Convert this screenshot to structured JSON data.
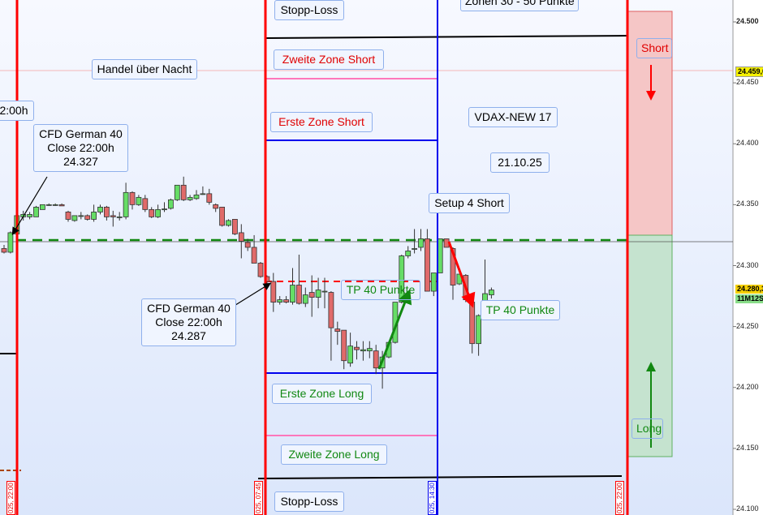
{
  "instrument_labels": {
    "top_cut": "Zonen 30 - 50 Punkte",
    "stopp_loss_top": "Stopp-Loss",
    "stopp_loss_bottom": "Stopp-Loss",
    "handel_ueber_nacht": "Handel über Nacht",
    "zweite_zone_short": "Zweite Zone Short",
    "erste_zone_short": "Erste Zone Short",
    "erste_zone_long": "Erste Zone Long",
    "zweite_zone_long": "Zweite Zone Long",
    "left_cut": "2:00h",
    "close1": {
      "line1": "CFD German 40",
      "line2": "Close 22:00h",
      "line3": "24.327"
    },
    "close2": {
      "line1": "CFD German 40",
      "line2": "Close 22:00h",
      "line3": "24.287"
    },
    "vdax": "VDAX-NEW 17",
    "date": "21.10.25",
    "setup": "Setup 4 Short",
    "tp1": "TP 40 Punkte",
    "tp2": "TP 40 Punkte",
    "short": "Short",
    "long": "Long"
  },
  "time_tags": [
    "025, 22:00",
    "025, 07:45",
    "025, 14:30",
    "025, 22:00"
  ],
  "price_axis": {
    "ticks": [
      "24.500",
      "24.450",
      "24.400",
      "24.350",
      "24.300",
      "24.250",
      "24.200",
      "24.150",
      "24.100"
    ],
    "tick_values": [
      24500,
      24450,
      24400,
      24350,
      24300,
      24250,
      24200,
      24150,
      24100
    ],
    "marker_price": "24.459,0",
    "last_price": "24.280,3",
    "countdown": "11M12S"
  },
  "colors": {
    "up": "#66dd66",
    "down": "#e06a6a",
    "zone_red": "#ff0000",
    "zone_blue": "#0000ee",
    "dashed_green": "#118811"
  },
  "chart_data": {
    "type": "candlestick",
    "ylim": [
      24100,
      24500
    ],
    "levels": {
      "green_dashed": 24320,
      "red_dashed": 24286,
      "marker": 24459
    },
    "candles_ohlc": [
      [
        24314,
        24317,
        24310,
        24311
      ],
      [
        24311,
        24328,
        24310,
        24327
      ],
      [
        24326,
        24343,
        24325,
        24341
      ],
      [
        24340,
        24345,
        24337,
        24342
      ],
      [
        24340,
        24344,
        24338,
        24342
      ],
      [
        24340,
        24349,
        24340,
        24348
      ],
      [
        24346,
        24350,
        24346,
        24350
      ],
      [
        24350,
        24351,
        24349,
        24350
      ],
      [
        24350,
        24351,
        24349,
        24350
      ],
      [
        24350,
        24351,
        24349,
        24349
      ],
      [
        24344,
        24345,
        24336,
        24338
      ],
      [
        24337,
        24341,
        24336,
        24341
      ],
      [
        24341,
        24344,
        24338,
        24341
      ],
      [
        24341,
        24342,
        24337,
        24338
      ],
      [
        24338,
        24350,
        24336,
        24344
      ],
      [
        24344,
        24350,
        24342,
        24348
      ],
      [
        24348,
        24349,
        24337,
        24340
      ],
      [
        24341,
        24345,
        24332,
        24340
      ],
      [
        24340,
        24344,
        24337,
        24340
      ],
      [
        24340,
        24368,
        24338,
        24360
      ],
      [
        24360,
        24361,
        24346,
        24350
      ],
      [
        24350,
        24358,
        24349,
        24356
      ],
      [
        24355,
        24358,
        24344,
        24346
      ],
      [
        24346,
        24348,
        24339,
        24340
      ],
      [
        24340,
        24350,
        24339,
        24346
      ],
      [
        24346,
        24352,
        24344,
        24346.5
      ],
      [
        24347,
        24355,
        24346,
        24354
      ],
      [
        24354,
        24366,
        24353,
        24366
      ],
      [
        24366,
        24373,
        24353,
        24354
      ],
      [
        24354,
        24358,
        24353,
        24356
      ],
      [
        24355,
        24362,
        24354,
        24358
      ],
      [
        24359,
        24365,
        24358,
        24359
      ],
      [
        24359,
        24363,
        24350,
        24352
      ],
      [
        24350,
        24351,
        24344,
        24347
      ],
      [
        24348,
        24348,
        24332,
        24333
      ],
      [
        24333,
        24338,
        24332,
        24337
      ],
      [
        24338,
        24338,
        24325,
        24326
      ],
      [
        24327,
        24334,
        24306,
        24320
      ],
      [
        24319,
        24322,
        24312,
        24315
      ],
      [
        24315,
        24325,
        24302,
        24302
      ],
      [
        24302,
        24303,
        24290,
        24291
      ],
      [
        24291,
        24292,
        24285,
        24287
      ],
      [
        24287,
        24294,
        24262,
        24270
      ],
      [
        24270,
        24275,
        24268,
        24272
      ],
      [
        24272,
        24275,
        24269,
        24270
      ],
      [
        24270,
        24298,
        24268,
        24284
      ],
      [
        24284,
        24309,
        24268,
        24269
      ],
      [
        24269,
        24282,
        24266,
        24276
      ],
      [
        24278,
        24292,
        24258,
        24274
      ],
      [
        24274,
        24290,
        24265,
        24280
      ],
      [
        24279,
        24290,
        24265,
        24279
      ],
      [
        24278,
        24279,
        24222,
        24249
      ],
      [
        24248,
        24254,
        24235,
        24246
      ],
      [
        24247,
        24247,
        24215,
        24222
      ],
      [
        24220,
        24245,
        24217,
        24234
      ],
      [
        24233,
        24238,
        24223,
        24231
      ],
      [
        24230,
        24238,
        24222,
        24231
      ],
      [
        24230,
        24238,
        24224,
        24232
      ],
      [
        24230,
        24235,
        24211,
        24216
      ],
      [
        24216,
        24230,
        24199,
        24225
      ],
      [
        24225,
        24238,
        24224,
        24237
      ],
      [
        24237,
        24270,
        24236,
        24270
      ],
      [
        24270,
        24309,
        24269,
        24308
      ],
      [
        24308,
        24316,
        24306,
        24312
      ],
      [
        24314,
        24330,
        24310,
        24314
      ],
      [
        24315,
        24330,
        24312,
        24322
      ],
      [
        24322,
        24330,
        24279,
        24279
      ],
      [
        24279,
        24294,
        24275,
        24294
      ],
      [
        24294,
        24322,
        24294,
        24322
      ],
      [
        24322,
        24322,
        24315,
        24315
      ],
      [
        24314,
        24315,
        24272,
        24284
      ],
      [
        24285,
        24293,
        24284,
        24293
      ],
      [
        24292,
        24293,
        24270,
        24272
      ],
      [
        24270,
        24272,
        24228,
        24236
      ],
      [
        24236,
        24260,
        24226,
        24259
      ],
      [
        24259,
        24305,
        24258,
        24277
      ],
      [
        24276,
        24282,
        24273,
        24280
      ]
    ]
  }
}
